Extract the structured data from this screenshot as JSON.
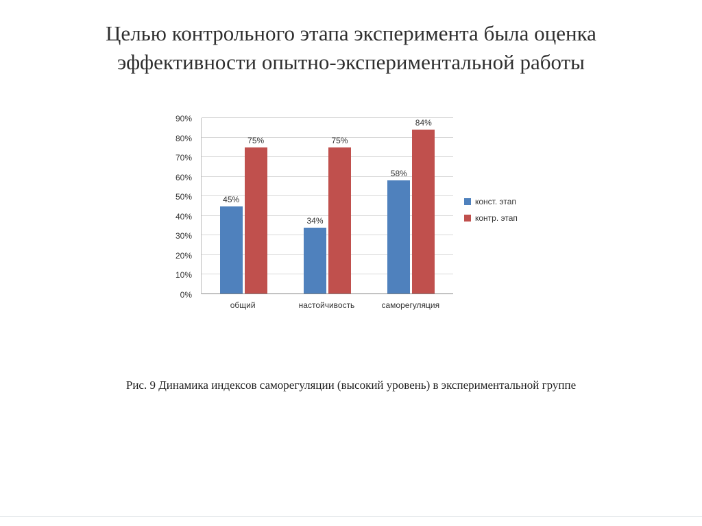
{
  "slide": {
    "title": "Целью контрольного этапа эксперимента была оценка эффективности опытно-экспериментальной работы",
    "caption": "Рис. 9 Динамика индексов саморегуляции (высокий уровень) в экспериментальной группе"
  },
  "colors": {
    "series1": "#4f81bd",
    "series2": "#c0504d",
    "gridline": "#d9d9d9",
    "axis_line": "#808080",
    "text": "#333333"
  },
  "chart_data": {
    "type": "bar",
    "title": "",
    "xlabel": "",
    "ylabel": "",
    "categories": [
      "общий",
      "настойчивость",
      "саморегуляция"
    ],
    "series": [
      {
        "name": "конст. этап",
        "color": "#4f81bd",
        "values": [
          45,
          34,
          58
        ]
      },
      {
        "name": "контр. этап",
        "color": "#c0504d",
        "values": [
          75,
          75,
          84
        ]
      }
    ],
    "value_labels": [
      [
        "45%",
        "75%"
      ],
      [
        "34%",
        "75%"
      ],
      [
        "58%",
        "84%"
      ]
    ],
    "yticks": [
      "0%",
      "10%",
      "20%",
      "30%",
      "40%",
      "50%",
      "60%",
      "70%",
      "80%",
      "90%"
    ],
    "ylim": [
      0,
      90
    ],
    "grid": true,
    "legend_position": "right"
  }
}
